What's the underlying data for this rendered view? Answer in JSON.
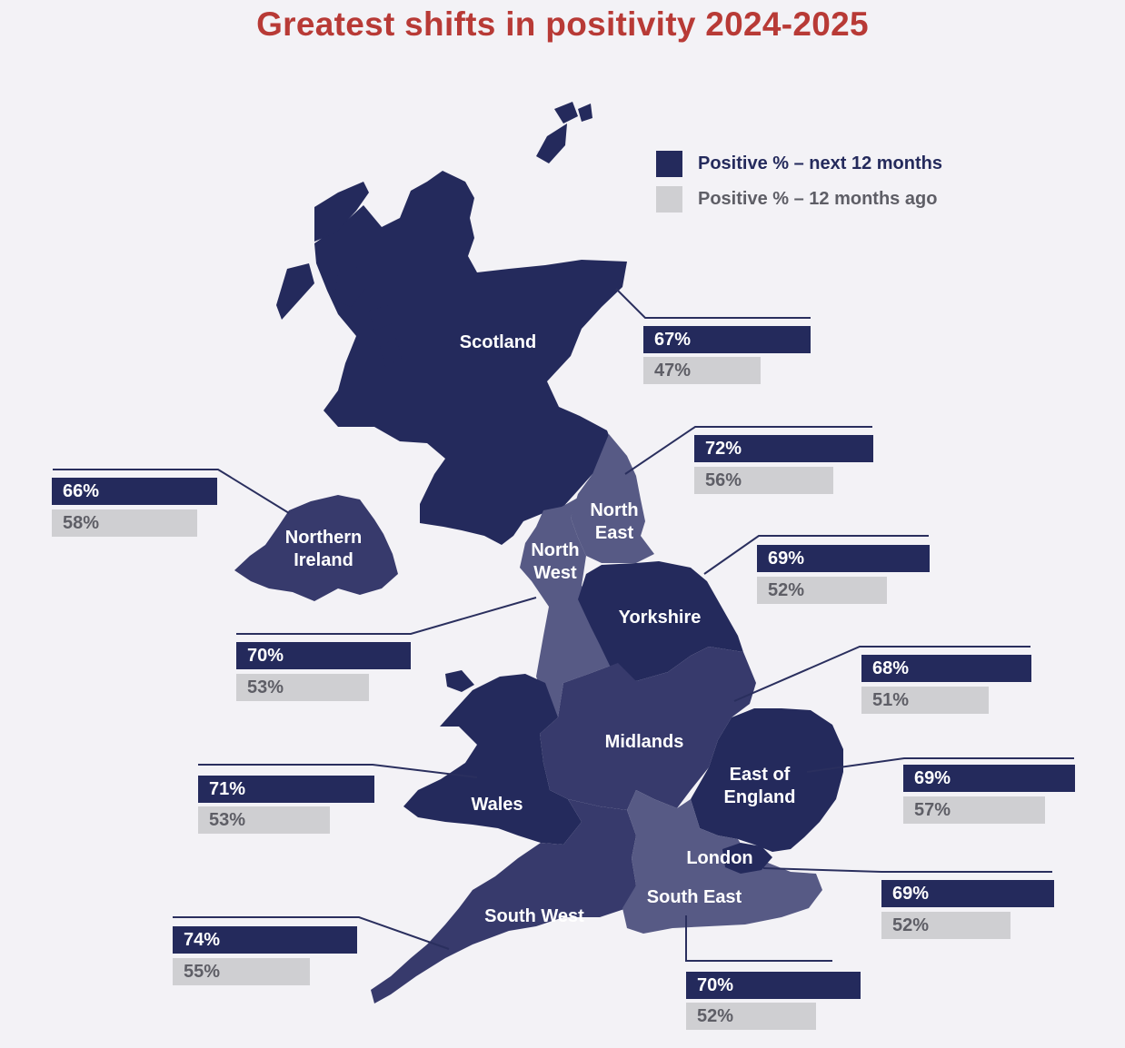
{
  "title": "Greatest shifts in positivity 2024-2025",
  "legend": [
    {
      "label": "Positive % – next 12 months",
      "color": "#242a5c"
    },
    {
      "label": "Positive % – 12 months ago",
      "color": "#cfcfd2"
    }
  ],
  "colors": {
    "title": "#b83a36",
    "region_dark": "#242a5c",
    "region_mid": "#373a6c",
    "region_light": "#575a85",
    "callout_line": "#2a2f5e",
    "background": "#f3f2f6"
  },
  "regions": [
    {
      "key": "scotland",
      "label": "Scotland",
      "next": "67%",
      "ago": "47%"
    },
    {
      "key": "north_east",
      "label": "North East",
      "next": "72%",
      "ago": "56%"
    },
    {
      "key": "northern_ireland",
      "label": "Northern Ireland",
      "next": "66%",
      "ago": "58%"
    },
    {
      "key": "yorkshire",
      "label": "Yorkshire",
      "next": "69%",
      "ago": "52%"
    },
    {
      "key": "north_west",
      "label": "North West",
      "next": "70%",
      "ago": "53%"
    },
    {
      "key": "midlands",
      "label": "Midlands",
      "next": "68%",
      "ago": "51%"
    },
    {
      "key": "wales",
      "label": "Wales",
      "next": "71%",
      "ago": "53%"
    },
    {
      "key": "east_of_england",
      "label": "East of England",
      "next": "69%",
      "ago": "57%"
    },
    {
      "key": "london",
      "label": "London",
      "next": "69%",
      "ago": "52%"
    },
    {
      "key": "south_west",
      "label": "South West",
      "next": "74%",
      "ago": "55%"
    },
    {
      "key": "south_east",
      "label": "South East",
      "next": "70%",
      "ago": "52%"
    }
  ]
}
